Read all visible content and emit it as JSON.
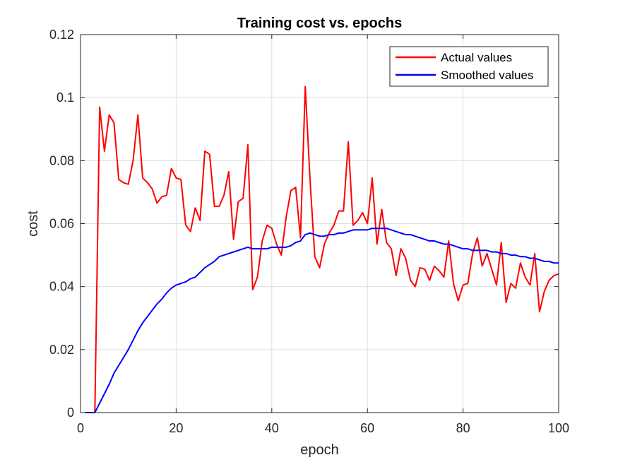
{
  "chart_data": {
    "type": "line",
    "title": "Training cost vs. epochs",
    "xlabel": "epoch",
    "ylabel": "cost",
    "xlim": [
      0,
      100
    ],
    "ylim": [
      0,
      0.12
    ],
    "xticks": [
      0,
      20,
      40,
      60,
      80,
      100
    ],
    "xtick_labels": [
      "0",
      "20",
      "40",
      "60",
      "80",
      "100"
    ],
    "yticks": [
      0,
      0.02,
      0.04,
      0.06,
      0.08,
      0.1,
      0.12
    ],
    "ytick_labels": [
      "0",
      "0.02",
      "0.04",
      "0.06",
      "0.08",
      "0.1",
      "0.12"
    ],
    "grid": true,
    "legend_position": "top-right",
    "series": [
      {
        "name": "Actual values",
        "color": "#ff0000",
        "x": [
          1,
          2,
          3,
          4,
          5,
          6,
          7,
          8,
          9,
          10,
          11,
          12,
          13,
          14,
          15,
          16,
          17,
          18,
          19,
          20,
          21,
          22,
          23,
          24,
          25,
          26,
          27,
          28,
          29,
          30,
          31,
          32,
          33,
          34,
          35,
          36,
          37,
          38,
          39,
          40,
          41,
          42,
          43,
          44,
          45,
          46,
          47,
          48,
          49,
          50,
          51,
          52,
          53,
          54,
          55,
          56,
          57,
          58,
          59,
          60,
          61,
          62,
          63,
          64,
          65,
          66,
          67,
          68,
          69,
          70,
          71,
          72,
          73,
          74,
          75,
          76,
          77,
          78,
          79,
          80,
          81,
          82,
          83,
          84,
          85,
          86,
          87,
          88,
          89,
          90,
          91,
          92,
          93,
          94,
          95,
          96,
          97,
          98,
          99,
          100
        ],
        "values": [
          0,
          0,
          0,
          0.097,
          0.083,
          0.0945,
          0.092,
          0.074,
          0.073,
          0.0725,
          0.08,
          0.0945,
          0.0745,
          0.073,
          0.071,
          0.0665,
          0.0685,
          0.069,
          0.0775,
          0.0745,
          0.074,
          0.0595,
          0.0575,
          0.065,
          0.061,
          0.083,
          0.082,
          0.0655,
          0.0655,
          0.069,
          0.0765,
          0.055,
          0.067,
          0.068,
          0.085,
          0.039,
          0.043,
          0.0545,
          0.0595,
          0.0585,
          0.0535,
          0.05,
          0.062,
          0.0705,
          0.0715,
          0.0555,
          0.1035,
          0.074,
          0.0495,
          0.046,
          0.0535,
          0.057,
          0.0595,
          0.064,
          0.064,
          0.086,
          0.0595,
          0.061,
          0.0635,
          0.06,
          0.0745,
          0.0535,
          0.0645,
          0.054,
          0.052,
          0.0435,
          0.052,
          0.049,
          0.042,
          0.04,
          0.046,
          0.0455,
          0.042,
          0.0465,
          0.045,
          0.043,
          0.0545,
          0.041,
          0.0355,
          0.0405,
          0.041,
          0.0505,
          0.0555,
          0.0465,
          0.0505,
          0.0455,
          0.0405,
          0.054,
          0.035,
          0.041,
          0.0395,
          0.0475,
          0.043,
          0.0405,
          0.0505,
          0.032,
          0.0385,
          0.042,
          0.0435,
          0.044
        ]
      },
      {
        "name": "Smoothed values",
        "color": "#0000ff",
        "x": [
          1,
          2,
          3,
          4,
          5,
          6,
          7,
          8,
          9,
          10,
          11,
          12,
          13,
          14,
          15,
          16,
          17,
          18,
          19,
          20,
          21,
          22,
          23,
          24,
          25,
          26,
          27,
          28,
          29,
          30,
          31,
          32,
          33,
          34,
          35,
          36,
          37,
          38,
          39,
          40,
          41,
          42,
          43,
          44,
          45,
          46,
          47,
          48,
          49,
          50,
          51,
          52,
          53,
          54,
          55,
          56,
          57,
          58,
          59,
          60,
          61,
          62,
          63,
          64,
          65,
          66,
          67,
          68,
          69,
          70,
          71,
          72,
          73,
          74,
          75,
          76,
          77,
          78,
          79,
          80,
          81,
          82,
          83,
          84,
          85,
          86,
          87,
          88,
          89,
          90,
          91,
          92,
          93,
          94,
          95,
          96,
          97,
          98,
          99,
          100
        ],
        "values": [
          0,
          0,
          0,
          0.003,
          0.006,
          0.009,
          0.0125,
          0.015,
          0.0175,
          0.02,
          0.023,
          0.026,
          0.0285,
          0.0305,
          0.0325,
          0.0345,
          0.036,
          0.038,
          0.0395,
          0.0405,
          0.041,
          0.0415,
          0.0425,
          0.043,
          0.0445,
          0.046,
          0.047,
          0.048,
          0.0495,
          0.05,
          0.0505,
          0.051,
          0.0515,
          0.052,
          0.0525,
          0.052,
          0.052,
          0.052,
          0.052,
          0.0525,
          0.0525,
          0.0525,
          0.0525,
          0.053,
          0.054,
          0.0545,
          0.0565,
          0.057,
          0.0565,
          0.056,
          0.056,
          0.0565,
          0.0565,
          0.057,
          0.057,
          0.0575,
          0.058,
          0.058,
          0.058,
          0.058,
          0.0585,
          0.0585,
          0.0585,
          0.0585,
          0.058,
          0.0575,
          0.057,
          0.0565,
          0.0565,
          0.056,
          0.0555,
          0.055,
          0.0545,
          0.0545,
          0.054,
          0.0535,
          0.0535,
          0.053,
          0.0525,
          0.052,
          0.052,
          0.0515,
          0.0515,
          0.0515,
          0.0515,
          0.051,
          0.051,
          0.0505,
          0.0505,
          0.05,
          0.05,
          0.0495,
          0.0495,
          0.049,
          0.049,
          0.0485,
          0.048,
          0.048,
          0.0475,
          0.0475
        ]
      }
    ]
  }
}
